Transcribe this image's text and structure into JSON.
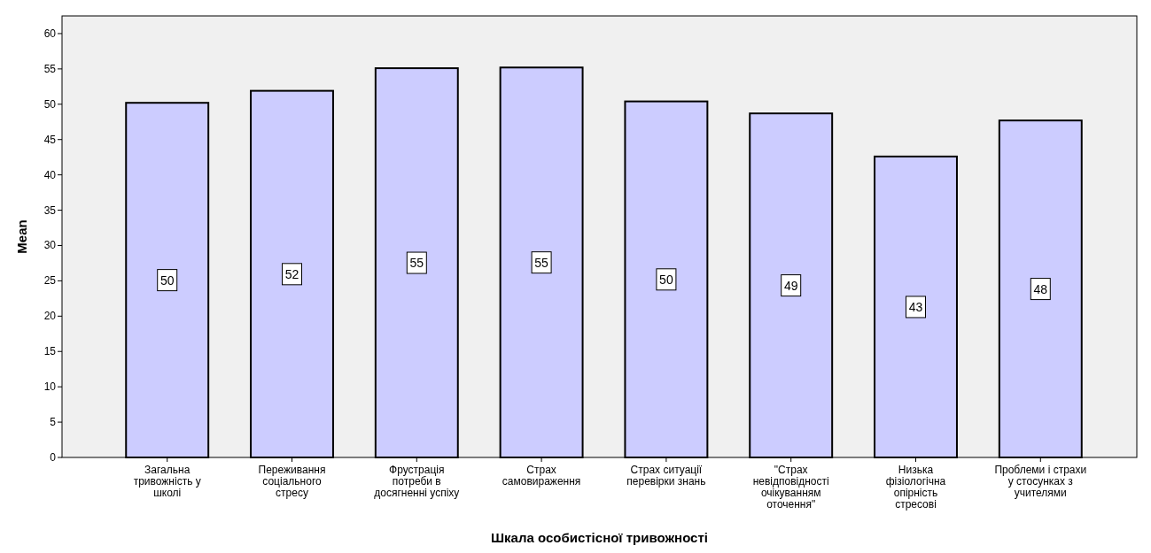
{
  "chart_data": {
    "type": "bar",
    "xlabel": "Шкала особистісної тривожності",
    "ylabel": "Mean",
    "categories": [
      "Загальна тривожність у школі",
      "Переживання соціального стресу",
      "Фрустрація потреби в досягненні успіху",
      "Страх самовираження",
      "Страх ситуації перевірки знань",
      "\"Страх невідповідності очікуванням оточення\"",
      "Низька фізіологічна опірність стресові",
      "Проблеми і страхи у стосунках з учителями"
    ],
    "values": [
      50.2,
      51.9,
      55.1,
      55.2,
      50.4,
      48.7,
      42.6,
      47.7
    ],
    "value_labels": [
      "50",
      "52",
      "55",
      "55",
      "50",
      "49",
      "43",
      "48"
    ],
    "color": "#ccccff",
    "ylim": [
      0,
      62.5
    ],
    "yticks": [
      0,
      5,
      10,
      15,
      20,
      25,
      30,
      35,
      40,
      45,
      50,
      55,
      60
    ],
    "grid": false
  }
}
